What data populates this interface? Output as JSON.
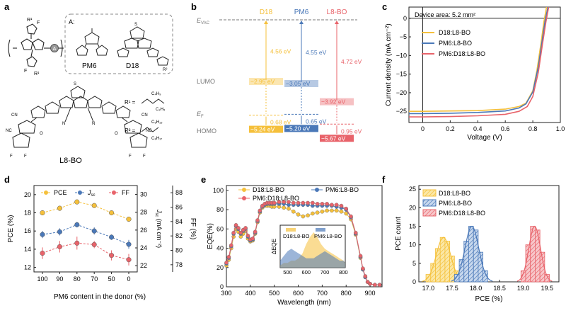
{
  "panels": {
    "a": {
      "letter": "a",
      "box_title": "A:",
      "donor_labels": [
        "PM6",
        "D18"
      ],
      "acceptor_label": "L8-BO",
      "unit_label": "A",
      "r_labels": [
        "R¹",
        "R¹",
        "R²"
      ],
      "substituents": [
        "R¹ =",
        "R² ="
      ],
      "atom_labels": [
        "F",
        "F",
        "F",
        "F",
        "S",
        "S",
        "S",
        "S",
        "N",
        "N",
        "CN",
        "NC",
        "CN",
        "NC",
        "O",
        "O",
        "F",
        "F",
        "F",
        "F",
        "C₄H₉",
        "C₂H₅",
        "C₆H₁₃",
        "C₈H₁₇"
      ]
    },
    "b": {
      "letter": "b",
      "columns": [
        {
          "name": "D18",
          "color": "#f5c03b",
          "lumo": -2.95,
          "homo": -5.24,
          "gap": "4.56 eV",
          "fermi_gap": "0.68 eV",
          "lumo_label": "−2.95 eV",
          "homo_label": "−5.24 eV"
        },
        {
          "name": "PM6",
          "color": "#4a78b8",
          "lumo": -3.05,
          "homo": -5.2,
          "gap": "4.55 eV",
          "fermi_gap": "0.65 eV",
          "lumo_label": "−3.05 eV",
          "homo_label": "−5.20 eV"
        },
        {
          "name": "L8-BO",
          "color": "#e8636a",
          "lumo": -3.92,
          "homo": -5.67,
          "gap": "4.72 eV",
          "fermi_gap": "0.95 eV",
          "lumo_label": "−3.92 eV",
          "homo_label": "−5.67 eV"
        }
      ],
      "evac": "E",
      "evac_sub": "VAC",
      "lumo": "LUMO",
      "ef": "E",
      "ef_sub": "F",
      "homo": "HOMO"
    },
    "c": {
      "letter": "c",
      "note": "Device area: 5.2 mm²"
    },
    "d": {
      "letter": "d"
    },
    "e": {
      "letter": "e",
      "inset_xlabel_ticks": [
        "500",
        "600",
        "700",
        "800"
      ],
      "inset_ylabel": "ΔEQE",
      "inset_legend": [
        "D18:L8-BO",
        "PM6:L8-BO"
      ]
    },
    "f": {
      "letter": "f"
    }
  },
  "chart_data": [
    {
      "id": "c",
      "type": "line",
      "xlabel": "Voltage (V)",
      "ylabel": "Current density (mA cm⁻²)",
      "xlim": [
        -0.1,
        1.0
      ],
      "ylim": [
        -28,
        3
      ],
      "xticks": [
        "0",
        "0.2",
        "0.4",
        "0.6",
        "0.8",
        "1.0"
      ],
      "yticks": [
        "0",
        "−5",
        "−10",
        "−15",
        "−20",
        "−25"
      ],
      "legend_position": "center-left",
      "series": [
        {
          "name": "D18:L8-BO",
          "color": "#f5c03b",
          "x": [
            -0.1,
            0.0,
            0.2,
            0.4,
            0.6,
            0.7,
            0.75,
            0.8,
            0.83,
            0.86,
            0.88,
            0.9
          ],
          "y": [
            -25.0,
            -25.0,
            -24.9,
            -24.8,
            -24.4,
            -23.7,
            -22.8,
            -19.5,
            -14.0,
            -6.5,
            -1.0,
            3.0
          ]
        },
        {
          "name": "PM6:L8-BO",
          "color": "#4a78b8",
          "x": [
            -0.1,
            0.0,
            0.2,
            0.4,
            0.6,
            0.7,
            0.75,
            0.8,
            0.84,
            0.87,
            0.89,
            0.91
          ],
          "y": [
            -25.6,
            -25.6,
            -25.5,
            -25.3,
            -24.9,
            -24.1,
            -23.0,
            -19.8,
            -13.0,
            -5.5,
            -0.5,
            3.0
          ]
        },
        {
          "name": "PM6:D18:L8-BO",
          "color": "#e8636a",
          "x": [
            -0.1,
            0.0,
            0.2,
            0.4,
            0.6,
            0.7,
            0.76,
            0.8,
            0.84,
            0.87,
            0.895,
            0.915
          ],
          "y": [
            -26.5,
            -26.5,
            -26.4,
            -26.2,
            -25.8,
            -25.0,
            -23.7,
            -21.0,
            -14.5,
            -7.0,
            -1.0,
            3.0
          ]
        }
      ]
    },
    {
      "id": "d",
      "type": "line",
      "xlabel": "PM6 content in the donor (%)",
      "ylabel": "PCE (%)",
      "ylabel_right": "FF (%)",
      "ylabel_mid": "J (mA cm⁻²)",
      "ylabel_mid_italic": "J",
      "ylabel_mid_sub": "sc",
      "ylabel_mid_unit": " (mA cm⁻²)",
      "categories": [
        "100",
        "90",
        "80",
        "70",
        "50",
        "0"
      ],
      "ylim": [
        11.5,
        21
      ],
      "yticks": [
        "12",
        "14",
        "16",
        "18",
        "20"
      ],
      "ylim_jsc": [
        21.3,
        31
      ],
      "yticks_jsc": [
        "22",
        "24",
        "26",
        "28",
        "30"
      ],
      "ylim_ff": [
        77,
        89
      ],
      "yticks_ff": [
        "78",
        "80",
        "82",
        "84",
        "86",
        "88"
      ],
      "legend_position": "top",
      "series": [
        {
          "name": "PCE",
          "color": "#f5c03b",
          "axis": "left",
          "values": [
            18.0,
            18.5,
            19.2,
            18.8,
            18.0,
            17.3
          ],
          "err": [
            0.1,
            0.1,
            0.1,
            0.1,
            0.1,
            0.1
          ]
        },
        {
          "name": "J",
          "name_sub": "sc",
          "color": "#4a78b8",
          "axis": "mid",
          "values": [
            25.5,
            25.8,
            26.6,
            25.9,
            25.2,
            24.4
          ],
          "err": [
            0.4,
            0.4,
            0.3,
            0.4,
            0.3,
            0.5
          ]
        },
        {
          "name": "FF",
          "color": "#e8636a",
          "axis": "right",
          "values": [
            79.6,
            80.5,
            81.0,
            80.8,
            79.3,
            78.7
          ],
          "err": [
            0.8,
            0.8,
            0.9,
            0.5,
            0.7,
            0.8
          ]
        }
      ]
    },
    {
      "id": "e",
      "type": "line",
      "xlabel": "Wavelength (nm)",
      "ylabel": "EQE(%)",
      "xlim": [
        300,
        950
      ],
      "ylim": [
        0,
        105
      ],
      "xticks": [
        "300",
        "400",
        "500",
        "600",
        "700",
        "800",
        "900"
      ],
      "yticks": [
        "0",
        "20",
        "40",
        "60",
        "80",
        "100"
      ],
      "legend_position": "top",
      "series": [
        {
          "name": "D18:L8-BO",
          "color": "#f5c03b",
          "x": [
            300,
            310,
            320,
            330,
            340,
            350,
            360,
            370,
            380,
            390,
            400,
            410,
            420,
            430,
            440,
            450,
            460,
            470,
            480,
            490,
            500,
            520,
            540,
            560,
            580,
            600,
            620,
            640,
            660,
            680,
            700,
            720,
            740,
            760,
            780,
            800,
            820,
            840,
            860,
            870,
            880,
            890,
            900,
            920,
            940
          ],
          "y": [
            22,
            28,
            40,
            52,
            60,
            57,
            52,
            55,
            58,
            50,
            47,
            48,
            55,
            67,
            77,
            82,
            84,
            84,
            84,
            83,
            83,
            83,
            82,
            81,
            78,
            75,
            73,
            74,
            76,
            77,
            78,
            79,
            79,
            79,
            78,
            76,
            70,
            54,
            30,
            18,
            10,
            5,
            3,
            2,
            2
          ]
        },
        {
          "name": "PM6:L8-BO",
          "color": "#4a78b8",
          "x": [
            300,
            310,
            320,
            330,
            340,
            350,
            360,
            370,
            380,
            390,
            400,
            410,
            420,
            430,
            440,
            450,
            460,
            470,
            480,
            490,
            500,
            520,
            540,
            560,
            580,
            600,
            620,
            640,
            660,
            680,
            700,
            720,
            740,
            760,
            780,
            800,
            820,
            840,
            860,
            870,
            880,
            890,
            900,
            920,
            940
          ],
          "y": [
            24,
            30,
            42,
            55,
            63,
            60,
            55,
            58,
            60,
            52,
            48,
            49,
            56,
            68,
            78,
            83,
            85,
            86,
            86,
            86,
            86,
            86,
            86,
            85,
            85,
            85,
            85,
            85,
            84,
            84,
            84,
            84,
            84,
            83,
            82,
            80,
            72,
            55,
            31,
            18,
            10,
            5,
            3,
            2,
            2
          ]
        },
        {
          "name": "PM6:D18:L8-BO",
          "color": "#e8636a",
          "x": [
            300,
            310,
            320,
            330,
            340,
            350,
            360,
            370,
            380,
            390,
            400,
            410,
            420,
            430,
            440,
            450,
            460,
            470,
            480,
            490,
            500,
            520,
            540,
            560,
            580,
            600,
            620,
            640,
            660,
            680,
            700,
            720,
            740,
            760,
            780,
            800,
            820,
            840,
            860,
            870,
            880,
            890,
            900,
            920,
            940
          ],
          "y": [
            25,
            31,
            43,
            56,
            64,
            61,
            56,
            59,
            61,
            53,
            49,
            50,
            57,
            69,
            79,
            84,
            86,
            87,
            87,
            87,
            87,
            88,
            88,
            88,
            87,
            87,
            87,
            87,
            87,
            86,
            86,
            86,
            85,
            85,
            84,
            81,
            73,
            56,
            32,
            19,
            11,
            5,
            3,
            2,
            2
          ]
        }
      ],
      "inset": {
        "type": "area",
        "xlim": [
          460,
          810
        ],
        "series": [
          {
            "name": "D18:L8-BO",
            "color": "#f5c03b",
            "x": [
              460,
              480,
              500,
              520,
              540,
              560,
              580,
              600,
              620,
              640,
              660,
              680,
              700,
              720,
              740,
              760,
              780,
              800,
              810
            ],
            "y": [
              1,
              2,
              2,
              3,
              3,
              4,
              6,
              10,
              13,
              15,
              13,
              10,
              8,
              7,
              6,
              5,
              4,
              3,
              2
            ]
          },
          {
            "name": "PM6:L8-BO",
            "color": "#4a78b8",
            "x": [
              460,
              480,
              500,
              520,
              540,
              560,
              580,
              600,
              620,
              640,
              660,
              680,
              700,
              720,
              740,
              760,
              780,
              800,
              810
            ],
            "y": [
              3,
              5,
              7,
              8,
              7,
              6,
              5,
              4,
              4,
              4,
              5,
              6,
              7,
              6,
              5,
              4,
              3,
              3,
              2
            ]
          }
        ]
      }
    },
    {
      "id": "f",
      "type": "bar",
      "xlabel": "PCE (%)",
      "ylabel": "PCE count",
      "xlim": [
        16.8,
        19.75
      ],
      "ylim": [
        0,
        26
      ],
      "xticks": [
        "17.0",
        "17.5",
        "18.0",
        "18.5",
        "19.0",
        "19.5"
      ],
      "yticks": [
        "0",
        "5",
        "10",
        "15",
        "20",
        "25"
      ],
      "legend_position": "top-left",
      "bin_width": 0.1,
      "series": [
        {
          "name": "D18:L8-BO",
          "color": "#f5c03b",
          "bins": [
            17.0,
            17.1,
            17.2,
            17.3,
            17.4,
            17.5,
            17.6
          ],
          "counts": [
            2,
            5,
            9,
            12,
            11,
            7,
            3
          ]
        },
        {
          "name": "PM6:L8-BO",
          "color": "#4a78b8",
          "bins": [
            17.6,
            17.7,
            17.8,
            17.9,
            18.0,
            18.1,
            18.2
          ],
          "counts": [
            2,
            6,
            11,
            15,
            14,
            8,
            3
          ]
        },
        {
          "name": "PM6:D18:L8-BO",
          "color": "#e8636a",
          "bins": [
            19.0,
            19.1,
            19.2,
            19.3,
            19.4,
            19.5
          ],
          "counts": [
            3,
            10,
            15,
            14,
            8,
            2
          ]
        }
      ]
    }
  ]
}
